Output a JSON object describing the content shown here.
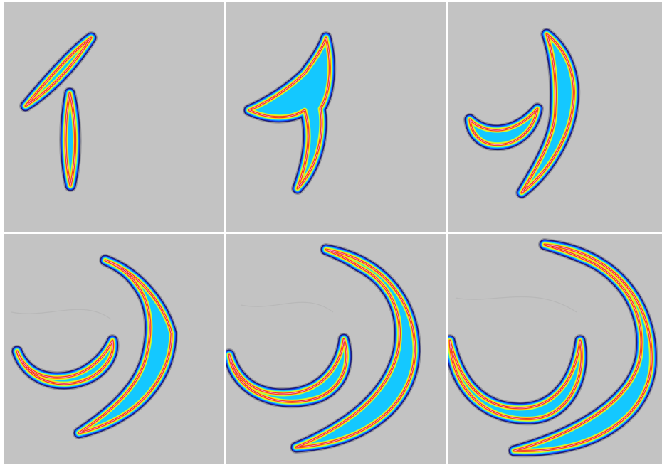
{
  "figure": {
    "panel_count": 6,
    "rows": 2,
    "cols": 3,
    "background_color": "#c3c3c3",
    "colormap": [
      "#1c1c7a",
      "#1450ff",
      "#14c8ff",
      "#b4ff3c",
      "#ffe61e",
      "#ff7814",
      "#e61414",
      "#ff9ad2"
    ],
    "panels": [
      {
        "frame": 1,
        "shapes": [
          "diagonal-streak",
          "vertical-streak"
        ]
      },
      {
        "frame": 2,
        "shapes": [
          "merged-y-shape"
        ]
      },
      {
        "frame": 3,
        "shapes": [
          "short-curved-arc",
          "long-curved-arc"
        ]
      },
      {
        "frame": 4,
        "shapes": [
          "inner-arc",
          "outer-arc"
        ]
      },
      {
        "frame": 5,
        "shapes": [
          "inner-arc",
          "outer-arc"
        ]
      },
      {
        "frame": 6,
        "shapes": [
          "inner-arc",
          "outer-arc"
        ]
      }
    ]
  }
}
